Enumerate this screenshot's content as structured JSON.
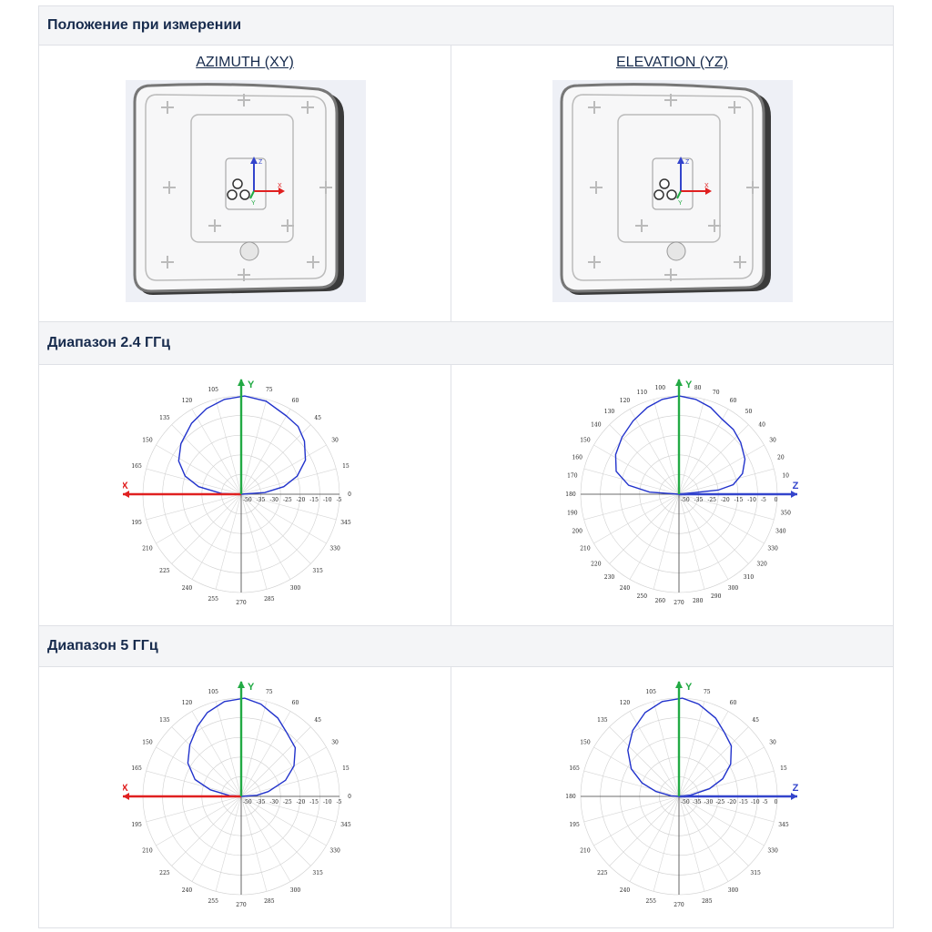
{
  "header_position": "Положение при измерении",
  "azimuth_title": "AZIMUTH (XY)",
  "elevation_title": "ELEVATION (YZ)",
  "band1_label": "Диапазон 2.4 ГГц",
  "band2_label": "Диапазон 5 ГГц",
  "device_axes": {
    "z": "Z",
    "x": "X",
    "y": "Y"
  },
  "plots": [
    {
      "name": "az-24",
      "axis_x": "X",
      "axis_y": "Y",
      "angles": [
        "0",
        "15",
        "30",
        "45",
        "60",
        "75",
        "105",
        "120",
        "135",
        "150",
        "165",
        "195",
        "210",
        "225",
        "240",
        "255",
        "270",
        "285",
        "300",
        "315",
        "330",
        "345"
      ],
      "rings": [
        "-50",
        "-35",
        "-30",
        "-25",
        "-20",
        "-15",
        "-10",
        "-5"
      ]
    },
    {
      "name": "el-24",
      "axis_x": "Z",
      "axis_y": "Y",
      "angles": [
        "10",
        "20",
        "30",
        "40",
        "50",
        "60",
        "70",
        "80",
        "100",
        "110",
        "120",
        "130",
        "140",
        "150",
        "160",
        "170",
        "180",
        "190",
        "200",
        "210",
        "220",
        "230",
        "240",
        "250",
        "260",
        "270",
        "280",
        "290",
        "300",
        "310",
        "320",
        "330",
        "340",
        "350"
      ],
      "rings": [
        "-50",
        "-35",
        "-25",
        "-20",
        "-15",
        "-10",
        "-5",
        "0"
      ]
    },
    {
      "name": "az-5",
      "axis_x": "X",
      "axis_y": "Y",
      "angles": [
        "0",
        "15",
        "30",
        "45",
        "60",
        "75",
        "105",
        "120",
        "135",
        "150",
        "165",
        "195",
        "210",
        "225",
        "240",
        "255",
        "270",
        "285",
        "300",
        "315",
        "330",
        "345"
      ],
      "rings": [
        "-50",
        "-35",
        "-30",
        "-25",
        "-20",
        "-15",
        "-10",
        "-5"
      ]
    },
    {
      "name": "el-5",
      "axis_x": "Z",
      "axis_y": "Y",
      "angles": [
        "15",
        "30",
        "45",
        "60",
        "75",
        "105",
        "120",
        "135",
        "150",
        "165",
        "180",
        "195",
        "210",
        "225",
        "240",
        "255",
        "270",
        "285",
        "300",
        "315",
        "330",
        "345"
      ],
      "rings": [
        "-50",
        "-35",
        "-30",
        "-25",
        "-20",
        "-15",
        "-10",
        "-5",
        "0"
      ]
    }
  ],
  "colors": {
    "pattern": "#2233cc",
    "x_axis": "#e02020",
    "y_axis": "#22aa44",
    "z_axis": "#3344cc"
  }
}
